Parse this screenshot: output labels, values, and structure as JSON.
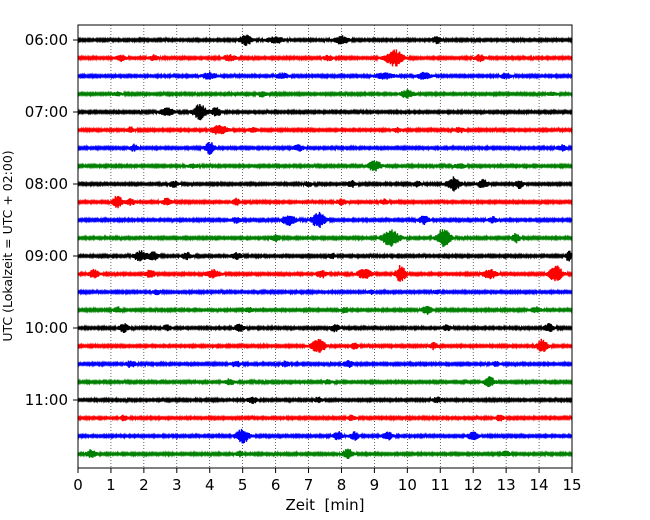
{
  "chart_data": {
    "type": "line",
    "title": "",
    "xlabel": "Zeit  [min]",
    "ylabel": "UTC (Lokalzeit = UTC + 02:00)",
    "xlim": [
      0,
      15
    ],
    "x_ticks": [
      0,
      1,
      2,
      3,
      4,
      5,
      6,
      7,
      8,
      9,
      10,
      11,
      12,
      13,
      14,
      15
    ],
    "x_tick_labels": [
      "0",
      "1",
      "2",
      "3",
      "4",
      "5",
      "6",
      "7",
      "8",
      "9",
      "10",
      "11",
      "12",
      "13",
      "14",
      "15"
    ],
    "y_tick_labels": [
      "06:00",
      "07:00",
      "08:00",
      "09:00",
      "10:00",
      "11:00"
    ],
    "y_tick_trace_index": [
      0,
      4,
      8,
      12,
      16,
      20
    ],
    "grid": "vertical dotted",
    "trace_minutes": 15,
    "trace_colors": [
      "#000000",
      "#ff0000",
      "#0000ff",
      "#008000"
    ],
    "traces": [
      {
        "start": "06:00",
        "color": "#000000",
        "events": [
          [
            5.1,
            0.18,
            0.55
          ],
          [
            6.0,
            0.25,
            0.35
          ],
          [
            8.0,
            0.2,
            0.45
          ],
          [
            10.9,
            0.15,
            0.35
          ]
        ]
      },
      {
        "start": "06:15",
        "color": "#ff0000",
        "events": [
          [
            1.3,
            0.15,
            0.3
          ],
          [
            2.3,
            0.12,
            0.3
          ],
          [
            4.6,
            0.2,
            0.3
          ],
          [
            7.6,
            0.15,
            0.25
          ],
          [
            9.6,
            0.25,
            0.95
          ],
          [
            12.2,
            0.15,
            0.35
          ]
        ]
      },
      {
        "start": "06:30",
        "color": "#0000ff",
        "events": [
          [
            4.0,
            0.2,
            0.4
          ],
          [
            6.2,
            0.2,
            0.3
          ],
          [
            9.3,
            0.3,
            0.3
          ],
          [
            10.5,
            0.2,
            0.35
          ],
          [
            13.0,
            0.15,
            0.3
          ]
        ]
      },
      {
        "start": "06:45",
        "color": "#008000",
        "events": [
          [
            1.2,
            0.15,
            0.2
          ],
          [
            5.6,
            0.15,
            0.3
          ],
          [
            10.0,
            0.2,
            0.45
          ],
          [
            14.4,
            0.15,
            0.2
          ]
        ]
      },
      {
        "start": "07:00",
        "color": "#000000",
        "events": [
          [
            2.7,
            0.2,
            0.45
          ],
          [
            3.7,
            0.2,
            0.8
          ],
          [
            4.2,
            0.15,
            0.45
          ]
        ]
      },
      {
        "start": "07:15",
        "color": "#ff0000",
        "events": [
          [
            1.6,
            0.12,
            0.3
          ],
          [
            4.3,
            0.25,
            0.5
          ],
          [
            5.3,
            0.15,
            0.25
          ],
          [
            9.7,
            0.12,
            0.25
          ],
          [
            11.6,
            0.15,
            0.3
          ]
        ]
      },
      {
        "start": "07:30",
        "color": "#0000ff",
        "events": [
          [
            1.7,
            0.12,
            0.35
          ],
          [
            4.0,
            0.15,
            0.65
          ],
          [
            6.7,
            0.15,
            0.35
          ],
          [
            14.7,
            0.15,
            0.3
          ]
        ]
      },
      {
        "start": "07:45",
        "color": "#008000",
        "events": [
          [
            3.5,
            0.15,
            0.25
          ],
          [
            9.0,
            0.2,
            0.55
          ],
          [
            11.6,
            0.15,
            0.25
          ]
        ]
      },
      {
        "start": "08:00",
        "color": "#000000",
        "events": [
          [
            2.9,
            0.12,
            0.35
          ],
          [
            7.0,
            0.12,
            0.25
          ],
          [
            8.3,
            0.12,
            0.35
          ],
          [
            10.3,
            0.12,
            0.35
          ],
          [
            11.4,
            0.2,
            0.75
          ],
          [
            12.3,
            0.15,
            0.45
          ],
          [
            13.4,
            0.12,
            0.45
          ]
        ]
      },
      {
        "start": "08:15",
        "color": "#ff0000",
        "events": [
          [
            1.2,
            0.15,
            0.65
          ],
          [
            1.6,
            0.12,
            0.35
          ],
          [
            2.7,
            0.15,
            0.4
          ],
          [
            4.8,
            0.12,
            0.35
          ],
          [
            8.0,
            0.15,
            0.3
          ],
          [
            9.3,
            0.12,
            0.3
          ]
        ]
      },
      {
        "start": "08:30",
        "color": "#0000ff",
        "events": [
          [
            4.8,
            0.15,
            0.3
          ],
          [
            6.4,
            0.2,
            0.6
          ],
          [
            7.3,
            0.2,
            0.85
          ],
          [
            10.5,
            0.15,
            0.45
          ],
          [
            12.6,
            0.12,
            0.35
          ]
        ]
      },
      {
        "start": "08:45",
        "color": "#008000",
        "events": [
          [
            6.0,
            0.15,
            0.4
          ],
          [
            9.5,
            0.25,
            0.9
          ],
          [
            11.1,
            0.2,
            1.0
          ],
          [
            13.3,
            0.12,
            0.5
          ]
        ]
      },
      {
        "start": "09:00",
        "color": "#000000",
        "events": [
          [
            1.9,
            0.2,
            0.55
          ],
          [
            2.3,
            0.15,
            0.45
          ],
          [
            3.3,
            0.15,
            0.35
          ],
          [
            4.8,
            0.15,
            0.35
          ],
          [
            7.7,
            0.12,
            0.3
          ],
          [
            14.9,
            0.08,
            0.7
          ]
        ]
      },
      {
        "start": "09:15",
        "color": "#ff0000",
        "events": [
          [
            0.5,
            0.15,
            0.5
          ],
          [
            2.2,
            0.15,
            0.45
          ],
          [
            4.1,
            0.2,
            0.45
          ],
          [
            7.4,
            0.15,
            0.4
          ],
          [
            8.7,
            0.2,
            0.55
          ],
          [
            9.8,
            0.15,
            0.95
          ],
          [
            12.5,
            0.2,
            0.5
          ],
          [
            14.5,
            0.2,
            0.95
          ]
        ]
      },
      {
        "start": "09:30",
        "color": "#0000ff",
        "events": [
          [
            2.4,
            0.12,
            0.25
          ],
          [
            8.9,
            0.12,
            0.2
          ],
          [
            10.9,
            0.12,
            0.25
          ]
        ]
      },
      {
        "start": "09:45",
        "color": "#008000",
        "events": [
          [
            1.2,
            0.12,
            0.3
          ],
          [
            5.2,
            0.12,
            0.25
          ],
          [
            8.1,
            0.12,
            0.3
          ],
          [
            10.6,
            0.15,
            0.45
          ],
          [
            13.9,
            0.15,
            0.3
          ]
        ]
      },
      {
        "start": "10:00",
        "color": "#000000",
        "events": [
          [
            1.4,
            0.15,
            0.45
          ],
          [
            2.7,
            0.12,
            0.3
          ],
          [
            4.9,
            0.15,
            0.4
          ],
          [
            7.8,
            0.15,
            0.35
          ],
          [
            11.2,
            0.12,
            0.3
          ],
          [
            14.3,
            0.15,
            0.45
          ]
        ]
      },
      {
        "start": "10:15",
        "color": "#ff0000",
        "events": [
          [
            7.3,
            0.2,
            0.8
          ],
          [
            8.4,
            0.12,
            0.3
          ],
          [
            10.8,
            0.12,
            0.35
          ],
          [
            14.1,
            0.15,
            0.75
          ]
        ]
      },
      {
        "start": "10:30",
        "color": "#0000ff",
        "events": [
          [
            1.6,
            0.15,
            0.35
          ],
          [
            4.8,
            0.15,
            0.3
          ],
          [
            6.3,
            0.12,
            0.3
          ],
          [
            8.2,
            0.15,
            0.35
          ],
          [
            12.7,
            0.12,
            0.3
          ]
        ]
      },
      {
        "start": "10:45",
        "color": "#008000",
        "events": [
          [
            4.6,
            0.15,
            0.3
          ],
          [
            7.6,
            0.12,
            0.25
          ],
          [
            12.5,
            0.15,
            0.55
          ]
        ]
      },
      {
        "start": "11:00",
        "color": "#000000",
        "events": [
          [
            5.3,
            0.15,
            0.35
          ],
          [
            7.3,
            0.12,
            0.3
          ],
          [
            10.9,
            0.12,
            0.3
          ]
        ]
      },
      {
        "start": "11:15",
        "color": "#ff0000",
        "events": [
          [
            1.4,
            0.12,
            0.3
          ],
          [
            8.3,
            0.12,
            0.25
          ],
          [
            12.8,
            0.12,
            0.3
          ]
        ]
      },
      {
        "start": "11:30",
        "color": "#0000ff",
        "events": [
          [
            5.0,
            0.2,
            0.75
          ],
          [
            7.9,
            0.15,
            0.45
          ],
          [
            8.4,
            0.12,
            0.45
          ],
          [
            9.4,
            0.15,
            0.45
          ],
          [
            12.0,
            0.15,
            0.45
          ]
        ]
      },
      {
        "start": "11:45",
        "color": "#008000",
        "events": [
          [
            0.4,
            0.15,
            0.45
          ],
          [
            4.9,
            0.12,
            0.3
          ],
          [
            8.2,
            0.15,
            0.55
          ],
          [
            13.0,
            0.12,
            0.3
          ]
        ]
      }
    ]
  }
}
